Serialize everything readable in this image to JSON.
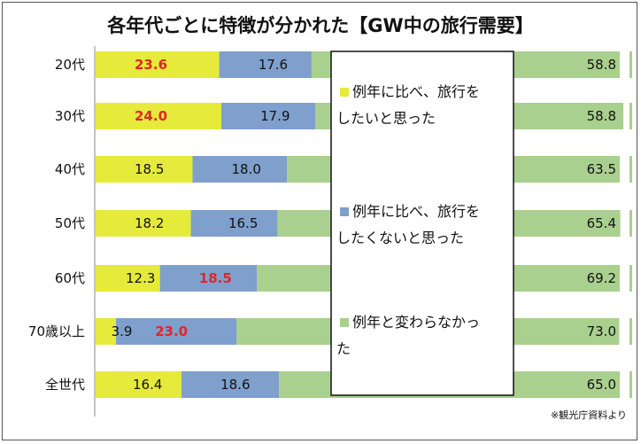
{
  "chart_data": {
    "type": "bar",
    "stacked": true,
    "orientation": "horizontal",
    "title": "各年代ごとに特徴が分かれた【GW中の旅行需要】",
    "source": "※観光庁資料より",
    "categories": [
      "20代",
      "30代",
      "40代",
      "50代",
      "60代",
      "70歳以上",
      "全世代"
    ],
    "series": [
      {
        "name": "例年に比べ、旅行をしたいと思った",
        "values": [
          23.6,
          24.0,
          18.5,
          18.2,
          12.3,
          3.9,
          16.4
        ]
      },
      {
        "name": "例年に比べ、旅行をしたくないと思った",
        "values": [
          17.6,
          17.9,
          18.0,
          16.5,
          18.5,
          23.0,
          18.6
        ]
      },
      {
        "name": "例年と変わらなかった",
        "values": [
          58.8,
          58.8,
          63.5,
          65.4,
          69.2,
          73.0,
          65.0
        ]
      }
    ],
    "value_labels": [
      [
        "23.6",
        "17.6",
        "58.8"
      ],
      [
        "24.0",
        "17.9",
        "58.8"
      ],
      [
        "18.5",
        "18.0",
        "63.5"
      ],
      [
        "18.2",
        "16.5",
        "65.4"
      ],
      [
        "12.3",
        "18.5",
        "69.2"
      ],
      [
        "3.9",
        "23.0",
        "73.0"
      ],
      [
        "16.4",
        "18.6",
        "65.0"
      ]
    ],
    "highlighted": [
      [
        0,
        0
      ],
      [
        1,
        0
      ],
      [
        4,
        1
      ],
      [
        5,
        1
      ]
    ],
    "colors": {
      "want": "#e6ea3a",
      "not_want": "#7f9fcc",
      "same": "#a9d08e",
      "highlight_text": "#e0262a"
    },
    "legend_placement": "right-overlay",
    "legend_lines": [
      [
        "例年に比べ、旅行を",
        "したいと思った"
      ],
      [
        "例年に比べ、旅行を",
        "したくないと思った"
      ],
      [
        "例年と変わらなかっ",
        "た"
      ]
    ],
    "xlim": [
      0,
      100
    ],
    "grid": false
  }
}
